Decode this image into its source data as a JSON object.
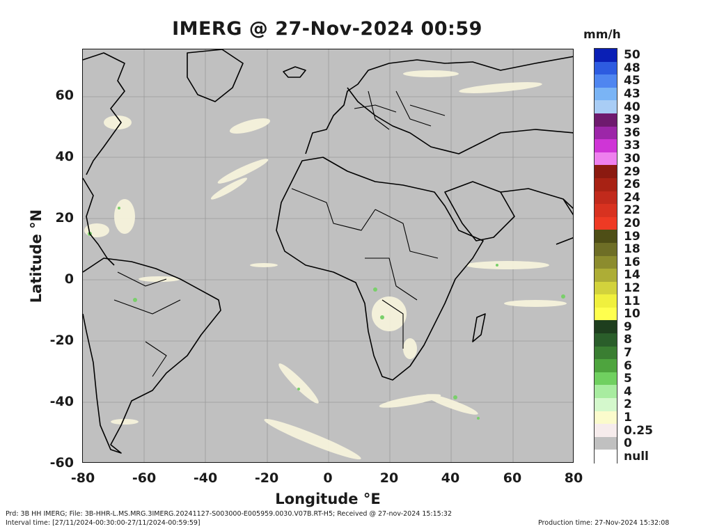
{
  "title": "IMERG @ 27-Nov-2024 00:59",
  "unit": "mm/h",
  "axes": {
    "xlabel": "Longitude °E",
    "ylabel": "Latitude °N",
    "xticks": [
      "-80",
      "-60",
      "-40",
      "-20",
      "0",
      "20",
      "40",
      "60",
      "80"
    ],
    "yticks": [
      "60",
      "40",
      "20",
      "0",
      "-20",
      "-40",
      "-60"
    ]
  },
  "colorbar": {
    "labels": [
      "50",
      "48",
      "45",
      "43",
      "40",
      "39",
      "36",
      "33",
      "30",
      "29",
      "26",
      "24",
      "22",
      "20",
      "19",
      "18",
      "16",
      "14",
      "12",
      "11",
      "10",
      "9",
      "8",
      "7",
      "6",
      "5",
      "4",
      "2",
      "1",
      "0.25",
      "0",
      "null"
    ],
    "colors": [
      "#0a1fb5",
      "#2d5be0",
      "#4f86f0",
      "#7ab4f5",
      "#a9cdf5",
      "#6e1a6e",
      "#9c26a8",
      "#cf35d6",
      "#ee80ee",
      "#8b1a10",
      "#a82214",
      "#c12a1c",
      "#d83220",
      "#ee3a24",
      "#4e4e16",
      "#6e6e26",
      "#8c8c2e",
      "#adad36",
      "#d2d23c",
      "#f0f03e",
      "#ffff4e",
      "#1e3e1e",
      "#2a5e2a",
      "#3a7e32",
      "#4ea43e",
      "#70d060",
      "#a8eca0",
      "#d4f8cc",
      "#fbfbcc",
      "#f6ecec",
      "#c0c0c0",
      "#ffffff"
    ]
  },
  "footer": {
    "line1": "Prd: 3B HH IMERG; File: 3B-HHR-L.MS.MRG.3IMERG.20241127-S003000-E005959.0030.V07B.RT-H5; Received @ 27-nov-2024 15:15:32",
    "line2": "Interval time: [27/11/2024-00:30:00-27/11/2024-00:59:59]",
    "production": "Production time: 27-Nov-2024 15:32:08"
  }
}
